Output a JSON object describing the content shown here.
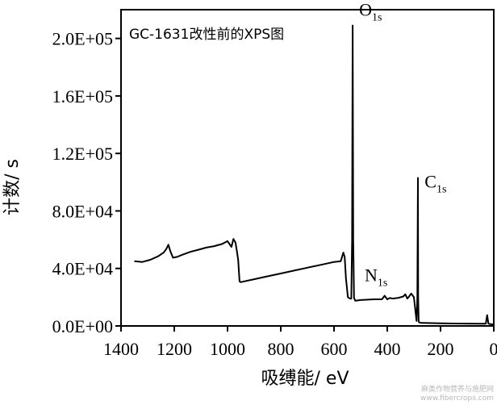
{
  "chart_data": {
    "type": "line",
    "title": "GC-1631改性前的XPS图",
    "xlabel": "吸缚能/ eV",
    "ylabel": "计数/ s",
    "xlim": [
      1400,
      0
    ],
    "ylim": [
      0,
      220000
    ],
    "x_reversed": true,
    "grid": false,
    "x_ticks": [
      1400,
      1200,
      1000,
      800,
      600,
      400,
      200,
      0
    ],
    "x_tick_labels": [
      "1400",
      "1200",
      "1000",
      "800",
      "600",
      "400",
      "200",
      "0"
    ],
    "y_ticks": [
      0,
      40000,
      80000,
      120000,
      160000,
      200000
    ],
    "y_tick_labels": [
      "0.0E+00",
      "4.0E+04",
      "8.0E+04",
      "1.2E+05",
      "1.6E+05",
      "2.0E+05"
    ],
    "series": [
      {
        "x": [
          1350,
          1320,
          1290,
          1260,
          1240,
          1230,
          1222,
          1215,
          1205,
          1190,
          1170,
          1140,
          1110,
          1080,
          1050,
          1020,
          1000,
          985,
          978,
          970,
          965,
          960,
          955,
          950,
          900,
          850,
          800,
          750,
          700,
          650,
          600,
          575,
          565,
          560,
          555,
          548,
          540,
          535,
          532,
          530,
          528,
          525,
          520,
          500,
          450,
          420,
          410,
          400,
          395,
          390,
          380,
          360,
          340,
          332,
          325,
          320,
          310,
          300,
          295,
          290,
          287,
          285,
          284,
          282,
          280,
          275,
          250,
          200,
          150,
          100,
          50,
          30,
          25,
          20,
          10,
          0
        ],
        "y": [
          45000,
          44500,
          46000,
          48500,
          51000,
          53500,
          56500,
          52000,
          47500,
          48000,
          49500,
          51500,
          53000,
          54500,
          55500,
          57000,
          59000,
          55000,
          60500,
          58000,
          52000,
          46000,
          31000,
          30500,
          32500,
          34500,
          36500,
          38500,
          40500,
          42500,
          44500,
          45000,
          51000,
          48000,
          33000,
          20000,
          19000,
          19000,
          60000,
          209000,
          60000,
          19500,
          17500,
          18000,
          18500,
          18500,
          21000,
          18500,
          19000,
          19500,
          19000,
          19500,
          20500,
          22000,
          19000,
          20000,
          22500,
          20000,
          12000,
          3500,
          20000,
          103000,
          20000,
          3000,
          2500,
          2200,
          2000,
          1800,
          1700,
          1600,
          1500,
          1500,
          7500,
          1500,
          1200,
          1000
        ]
      }
    ],
    "annotations": [
      {
        "element": "O",
        "subscript": "1s",
        "x": 530,
        "y": 209000
      },
      {
        "element": "C",
        "subscript": "1s",
        "x": 284,
        "y": 103000
      },
      {
        "element": "N",
        "subscript": "1s",
        "x": 400,
        "y": 21000
      }
    ]
  },
  "watermark": [
    "麻类作物营养与施肥网",
    "www.fibercrops.com"
  ]
}
